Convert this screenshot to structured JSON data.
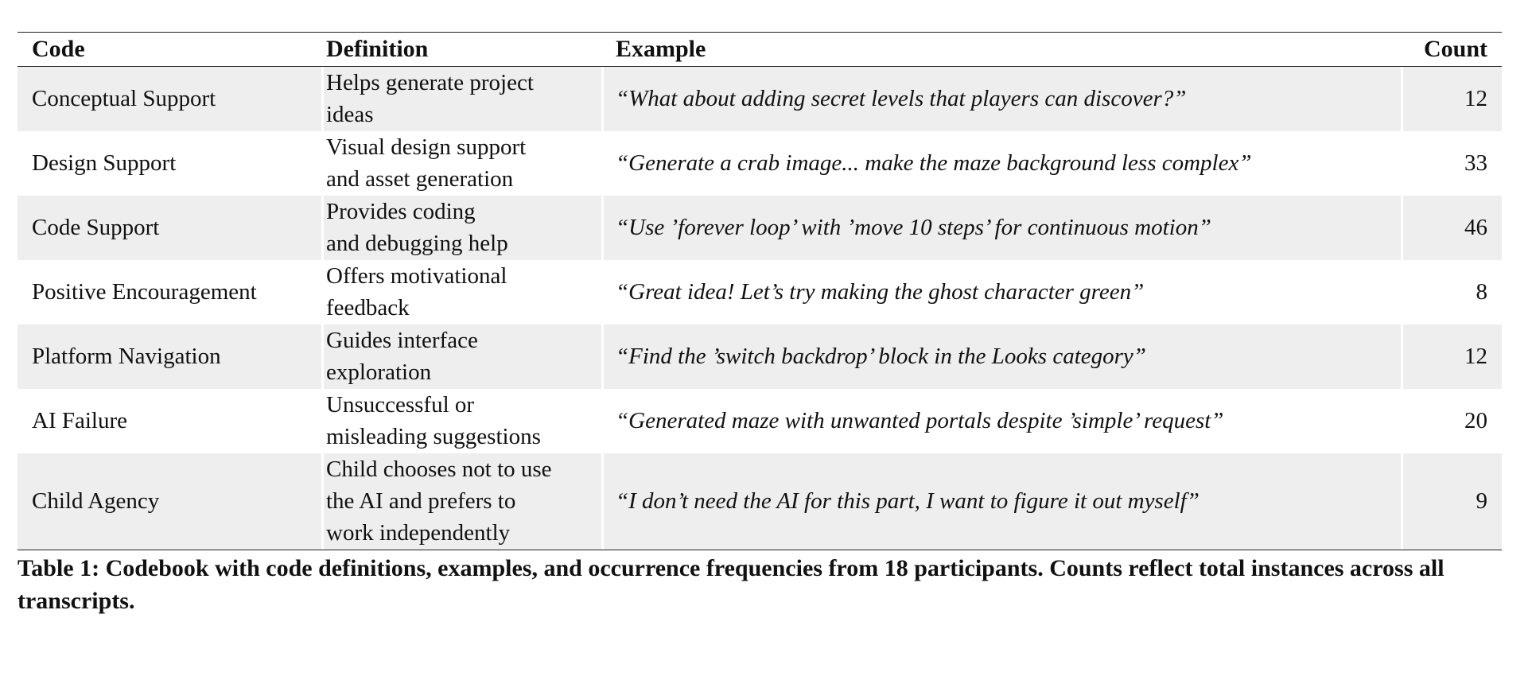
{
  "table": {
    "headers": {
      "code": "Code",
      "definition": "Definition",
      "example": "Example",
      "count": "Count"
    },
    "rows": [
      {
        "code": "Conceptual Support",
        "definition_lines": [
          "Helps generate project",
          "ideas"
        ],
        "example": "“What about adding secret levels that players can discover?”",
        "count": "12"
      },
      {
        "code": "Design Support",
        "definition_lines": [
          "Visual design support",
          "and asset generation"
        ],
        "example": "“Generate a crab image... make the maze background less complex”",
        "count": "33"
      },
      {
        "code": "Code Support",
        "definition_lines": [
          "Provides coding",
          "and debugging help"
        ],
        "example": "“Use ’forever loop’ with ’move 10 steps’ for continuous motion”",
        "count": "46"
      },
      {
        "code": "Positive Encouragement",
        "definition_lines": [
          "Offers motivational",
          "feedback"
        ],
        "example": "“Great idea! Let’s try making the ghost character green”",
        "count": "8"
      },
      {
        "code": "Platform Navigation",
        "definition_lines": [
          "Guides interface",
          "exploration"
        ],
        "example": "“Find the ’switch backdrop’ block in the Looks category”",
        "count": "12"
      },
      {
        "code": "AI Failure",
        "definition_lines": [
          "Unsuccessful or",
          "misleading suggestions"
        ],
        "example": "“Generated maze with unwanted portals despite ’simple’ request”",
        "count": "20"
      },
      {
        "code": "Child Agency",
        "definition_lines": [
          "Child chooses not to use",
          "the AI and prefers to",
          "work independently"
        ],
        "example": "“I don’t need the AI for this part, I want to figure it out myself”",
        "count": "9"
      }
    ]
  },
  "caption": "Table 1: Codebook with code definitions, examples, and occurrence frequencies from 18 participants. Counts reflect total instances across all transcripts.",
  "colors": {
    "shaded_row": "#eeeeee",
    "rule": "#222222"
  }
}
